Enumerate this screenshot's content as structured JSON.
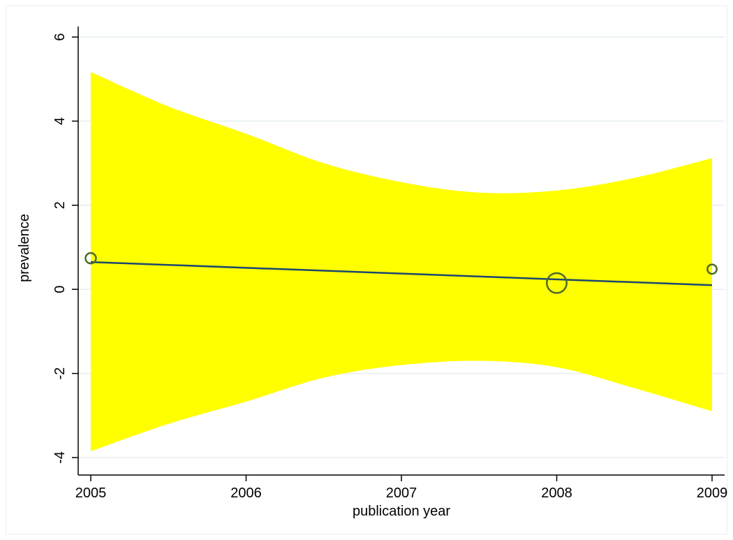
{
  "chart_data": {
    "type": "line",
    "xlabel": "publication year",
    "ylabel": "prevalence",
    "xlim": [
      2005,
      2009
    ],
    "ylim": [
      -4,
      6
    ],
    "xticks": [
      2005,
      2006,
      2007,
      2008,
      2009
    ],
    "yticks": [
      -4,
      -2,
      0,
      2,
      4,
      6
    ],
    "ytick_labels": [
      "-4",
      "-2",
      "0",
      "2",
      "4",
      "6"
    ],
    "xtick_labels": [
      "2005",
      "2006",
      "2007",
      "2008",
      "2009"
    ],
    "grid": "horizontal",
    "confidence_band": {
      "x": [
        2005,
        2005.5,
        2006,
        2006.5,
        2007,
        2007.5,
        2008,
        2008.5,
        2009
      ],
      "upper": [
        5.17,
        4.35,
        3.7,
        3.0,
        2.55,
        2.3,
        2.35,
        2.65,
        3.12
      ],
      "lower": [
        -3.85,
        -3.2,
        -2.67,
        -2.1,
        -1.8,
        -1.7,
        -1.85,
        -2.35,
        -2.9
      ]
    },
    "fit_line": {
      "x": [
        2005,
        2009
      ],
      "y": [
        0.65,
        0.1
      ]
    },
    "points": [
      {
        "x": 2005,
        "y": 0.74,
        "weight": 1.0
      },
      {
        "x": 2008,
        "y": 0.15,
        "weight": 3.6
      },
      {
        "x": 2009,
        "y": 0.48,
        "weight": 0.8
      }
    ],
    "colors": {
      "band": "#ffff00",
      "line": "#1a476f",
      "marker": "#4b6b2a",
      "grid": "#e6eef2",
      "axis": "#000000"
    }
  }
}
